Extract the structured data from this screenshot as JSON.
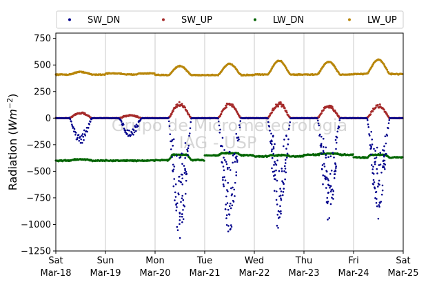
{
  "chart_data": {
    "type": "scatter",
    "ylabel_prefix": "Radiation (",
    "ylabel_unit_base": "Wm",
    "ylabel_unit_exp": "−2",
    "ylabel_suffix": ")",
    "ylim": [
      -1250,
      800
    ],
    "yticks": [
      -1250,
      -1000,
      -750,
      -500,
      -250,
      0,
      250,
      500,
      750
    ],
    "ytick_labels": [
      "−1250",
      "−1000",
      "−750",
      "−500",
      "−250",
      "0",
      "250",
      "500",
      "750"
    ],
    "xlim": [
      "2023-03-18",
      "2023-03-25"
    ],
    "xticks": [
      {
        "x": "2023-03-18",
        "day": "Sat",
        "date": "Mar-18"
      },
      {
        "x": "2023-03-19",
        "day": "Sun",
        "date": "Mar-19"
      },
      {
        "x": "2023-03-20",
        "day": "Mon",
        "date": "Mar-20"
      },
      {
        "x": "2023-03-21",
        "day": "Tue",
        "date": "Mar-21"
      },
      {
        "x": "2023-03-22",
        "day": "Wed",
        "date": "Mar-22"
      },
      {
        "x": "2023-03-23",
        "day": "Thu",
        "date": "Mar-23"
      },
      {
        "x": "2023-03-24",
        "day": "Fri",
        "date": "Mar-24"
      },
      {
        "x": "2023-03-25",
        "day": "Sat",
        "date": "Mar-25"
      }
    ],
    "grid": "vertical",
    "legend_placement": "top",
    "watermark": [
      "Grupo de Micrometeorologia",
      "IAG - USP"
    ],
    "series": [
      {
        "name": "SW_DN",
        "color": "#00008b",
        "daily_minimum": [
          -250,
          -190,
          -1150,
          -1100,
          -1080,
          -1040,
          -950
        ]
      },
      {
        "name": "SW_UP",
        "color": "#a52a2a",
        "daily_maximum": [
          55,
          30,
          150,
          150,
          150,
          130,
          130
        ]
      },
      {
        "name": "LW_DN",
        "color": "#006400",
        "night_level": [
          -400,
          -400,
          -395,
          -350,
          -360,
          -345,
          -370
        ],
        "day_level": [
          -390,
          -400,
          -345,
          -330,
          -350,
          -335,
          -345
        ]
      },
      {
        "name": "LW_UP",
        "color": "#b8860b",
        "night_level": [
          410,
          420,
          405,
          405,
          410,
          410,
          415
        ],
        "daily_maximum": [
          435,
          410,
          490,
          510,
          540,
          530,
          550
        ]
      }
    ]
  }
}
